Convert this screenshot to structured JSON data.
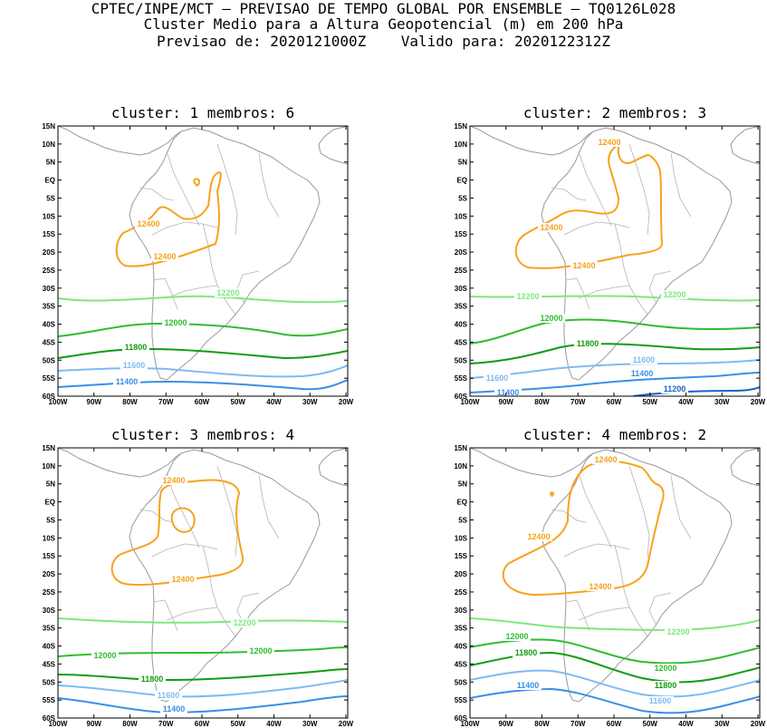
{
  "header": {
    "line1": "CPTEC/INPE/MCT – PREVISAO DE TEMPO GLOBAL POR ENSEMBLE – TQ0126L028",
    "line2": "Cluster Medio para a Altura Geopotencial (m) em 200 hPa",
    "line3": "Previsao de: 2020121000Z    Valido para: 2020122312Z"
  },
  "axes": {
    "lat_labels": [
      "15N",
      "10N",
      "5N",
      "EQ",
      "5S",
      "10S",
      "15S",
      "20S",
      "25S",
      "30S",
      "35S",
      "40S",
      "45S",
      "50S",
      "55S",
      "60S"
    ],
    "lon_labels": [
      "100W",
      "90W",
      "80W",
      "70W",
      "60W",
      "50W",
      "40W",
      "30W",
      "20W"
    ]
  },
  "colors": {
    "c12400": "#f7a21b",
    "c12200": "#7ee87e",
    "c12000": "#2fbd2f",
    "c11800": "#119c11",
    "c11600": "#7fbaf2",
    "c11400": "#3a8fe6",
    "c11200": "#1466c8"
  },
  "panels": [
    {
      "title": "cluster: 1   membros: 6",
      "contours": [
        {
          "level": "12400",
          "labels": [
            "12400",
            "12400"
          ]
        },
        {
          "level": "12200",
          "labels": [
            "12200"
          ]
        },
        {
          "level": "12000",
          "labels": [
            "12000"
          ]
        },
        {
          "level": "11800",
          "labels": [
            "11800"
          ]
        },
        {
          "level": "11600",
          "labels": [
            "11600"
          ]
        },
        {
          "level": "11400",
          "labels": [
            "11400"
          ]
        }
      ]
    },
    {
      "title": "cluster: 2   membros: 3",
      "contours": [
        {
          "level": "12400",
          "labels": [
            "12400",
            "12400",
            "12400"
          ]
        },
        {
          "level": "12200",
          "labels": [
            "12200",
            "12200"
          ]
        },
        {
          "level": "12000",
          "labels": [
            "12000"
          ]
        },
        {
          "level": "11800",
          "labels": [
            "11800"
          ]
        },
        {
          "level": "11600",
          "labels": [
            "11600",
            "11600"
          ]
        },
        {
          "level": "11400",
          "labels": [
            "11400",
            "11400"
          ]
        },
        {
          "level": "11200",
          "labels": [
            "11200"
          ]
        }
      ]
    },
    {
      "title": "cluster: 3   membros: 4",
      "contours": [
        {
          "level": "12400",
          "labels": [
            "12400",
            "12400"
          ]
        },
        {
          "level": "12200",
          "labels": [
            "12200"
          ]
        },
        {
          "level": "12000",
          "labels": [
            "12000",
            "12000"
          ]
        },
        {
          "level": "11800",
          "labels": [
            "11800"
          ]
        },
        {
          "level": "11600",
          "labels": [
            "11600"
          ]
        },
        {
          "level": "11400",
          "labels": [
            "11400"
          ]
        }
      ]
    },
    {
      "title": "cluster: 4   membros: 2",
      "contours": [
        {
          "level": "12400",
          "labels": [
            "12400",
            "12400",
            "12400"
          ]
        },
        {
          "level": "12200",
          "labels": [
            "12200"
          ]
        },
        {
          "level": "12000",
          "labels": [
            "12000",
            "12000"
          ]
        },
        {
          "level": "11800",
          "labels": [
            "11800",
            "11800"
          ]
        },
        {
          "level": "11600",
          "labels": [
            "11600"
          ]
        },
        {
          "level": "11400",
          "labels": [
            "11400"
          ]
        }
      ]
    }
  ]
}
